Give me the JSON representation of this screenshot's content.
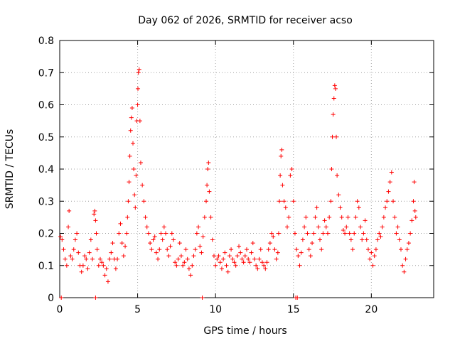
{
  "chart_data": {
    "type": "scatter",
    "title": "Day 062 of 2026, SRMTID for receiver acso",
    "xlabel": "GPS time / hours",
    "ylabel": "SRMTID / TECUs",
    "xlim": [
      0,
      24
    ],
    "ylim": [
      0,
      0.8
    ],
    "x_ticks": [
      0,
      5,
      10,
      15,
      20
    ],
    "x_tick_labels": [
      "0",
      "5",
      "10",
      "15",
      "20"
    ],
    "y_ticks": [
      0,
      0.1,
      0.2,
      0.3,
      0.4,
      0.5,
      0.6,
      0.7,
      0.8
    ],
    "y_tick_labels": [
      "0",
      "0.1",
      "0.2",
      "0.3",
      "0.4",
      "0.5",
      "0.6",
      "0.7",
      "0.8"
    ],
    "grid": true,
    "marker": "+",
    "color": "#ff0000",
    "series": [
      {
        "name": "SRMTID",
        "points": [
          [
            0.05,
            0.19
          ],
          [
            0.15,
            0.18
          ],
          [
            0.25,
            0.15
          ],
          [
            0.35,
            0.12
          ],
          [
            0.45,
            0.1
          ],
          [
            0.55,
            0.22
          ],
          [
            0.6,
            0.27
          ],
          [
            0.7,
            0.13
          ],
          [
            0.8,
            0.12
          ],
          [
            0.9,
            0.15
          ],
          [
            1.0,
            0.18
          ],
          [
            1.1,
            0.2
          ],
          [
            1.2,
            0.14
          ],
          [
            1.3,
            0.1
          ],
          [
            1.4,
            0.08
          ],
          [
            1.5,
            0.1
          ],
          [
            1.6,
            0.13
          ],
          [
            1.7,
            0.12
          ],
          [
            1.8,
            0.09
          ],
          [
            1.9,
            0.14
          ],
          [
            2.0,
            0.18
          ],
          [
            2.1,
            0.12
          ],
          [
            2.2,
            0.26
          ],
          [
            2.25,
            0.27
          ],
          [
            2.3,
            0.24
          ],
          [
            2.35,
            0.2
          ],
          [
            2.4,
            0.15
          ],
          [
            2.5,
            0.1
          ],
          [
            2.6,
            0.12
          ],
          [
            2.7,
            0.11
          ],
          [
            2.8,
            0.1
          ],
          [
            2.9,
            0.07
          ],
          [
            3.0,
            0.09
          ],
          [
            3.1,
            0.05
          ],
          [
            3.2,
            0.12
          ],
          [
            3.3,
            0.14
          ],
          [
            3.4,
            0.17
          ],
          [
            3.5,
            0.12
          ],
          [
            3.6,
            0.09
          ],
          [
            3.7,
            0.12
          ],
          [
            3.8,
            0.2
          ],
          [
            3.9,
            0.23
          ],
          [
            4.0,
            0.17
          ],
          [
            4.1,
            0.13
          ],
          [
            4.2,
            0.16
          ],
          [
            4.3,
            0.2
          ],
          [
            4.35,
            0.25
          ],
          [
            4.4,
            0.3
          ],
          [
            4.45,
            0.36
          ],
          [
            4.5,
            0.44
          ],
          [
            4.55,
            0.52
          ],
          [
            4.6,
            0.56
          ],
          [
            4.65,
            0.59
          ],
          [
            4.7,
            0.48
          ],
          [
            4.75,
            0.4
          ],
          [
            4.8,
            0.32
          ],
          [
            4.85,
            0.28
          ],
          [
            4.9,
            0.38
          ],
          [
            4.95,
            0.55
          ],
          [
            5.0,
            0.6
          ],
          [
            5.02,
            0.65
          ],
          [
            5.05,
            0.7
          ],
          [
            5.1,
            0.71
          ],
          [
            5.15,
            0.55
          ],
          [
            5.2,
            0.42
          ],
          [
            5.3,
            0.35
          ],
          [
            5.4,
            0.3
          ],
          [
            5.5,
            0.25
          ],
          [
            5.6,
            0.22
          ],
          [
            5.7,
            0.2
          ],
          [
            5.8,
            0.17
          ],
          [
            5.9,
            0.15
          ],
          [
            6.0,
            0.18
          ],
          [
            6.1,
            0.19
          ],
          [
            6.2,
            0.14
          ],
          [
            6.3,
            0.12
          ],
          [
            6.4,
            0.15
          ],
          [
            6.5,
            0.2
          ],
          [
            6.6,
            0.18
          ],
          [
            6.7,
            0.22
          ],
          [
            6.8,
            0.2
          ],
          [
            6.9,
            0.15
          ],
          [
            7.0,
            0.13
          ],
          [
            7.1,
            0.16
          ],
          [
            7.2,
            0.2
          ],
          [
            7.3,
            0.18
          ],
          [
            7.4,
            0.11
          ],
          [
            7.5,
            0.1
          ],
          [
            7.6,
            0.12
          ],
          [
            7.7,
            0.17
          ],
          [
            7.8,
            0.13
          ],
          [
            7.9,
            0.1
          ],
          [
            8.0,
            0.11
          ],
          [
            8.1,
            0.15
          ],
          [
            8.2,
            0.12
          ],
          [
            8.3,
            0.09
          ],
          [
            8.4,
            0.07
          ],
          [
            8.5,
            0.1
          ],
          [
            8.6,
            0.13
          ],
          [
            8.7,
            0.15
          ],
          [
            8.8,
            0.2
          ],
          [
            8.9,
            0.22
          ],
          [
            9.0,
            0.16
          ],
          [
            9.1,
            0.14
          ],
          [
            9.2,
            0.19
          ],
          [
            9.3,
            0.25
          ],
          [
            9.4,
            0.3
          ],
          [
            9.45,
            0.35
          ],
          [
            9.5,
            0.4
          ],
          [
            9.55,
            0.42
          ],
          [
            9.6,
            0.33
          ],
          [
            9.7,
            0.25
          ],
          [
            9.8,
            0.18
          ],
          [
            9.9,
            0.13
          ],
          [
            10.0,
            0.1
          ],
          [
            10.1,
            0.12
          ],
          [
            10.2,
            0.13
          ],
          [
            10.3,
            0.11
          ],
          [
            10.4,
            0.09
          ],
          [
            10.5,
            0.12
          ],
          [
            10.6,
            0.14
          ],
          [
            10.7,
            0.1
          ],
          [
            10.8,
            0.08
          ],
          [
            10.9,
            0.13
          ],
          [
            11.0,
            0.15
          ],
          [
            11.1,
            0.12
          ],
          [
            11.2,
            0.11
          ],
          [
            11.3,
            0.1
          ],
          [
            11.4,
            0.13
          ],
          [
            11.5,
            0.16
          ],
          [
            11.6,
            0.14
          ],
          [
            11.7,
            0.12
          ],
          [
            11.8,
            0.11
          ],
          [
            11.9,
            0.13
          ],
          [
            12.0,
            0.15
          ],
          [
            12.1,
            0.12
          ],
          [
            12.2,
            0.11
          ],
          [
            12.3,
            0.14
          ],
          [
            12.4,
            0.17
          ],
          [
            12.5,
            0.12
          ],
          [
            12.6,
            0.1
          ],
          [
            12.7,
            0.09
          ],
          [
            12.8,
            0.12
          ],
          [
            12.9,
            0.15
          ],
          [
            13.0,
            0.11
          ],
          [
            13.1,
            0.1
          ],
          [
            13.2,
            0.09
          ],
          [
            13.3,
            0.11
          ],
          [
            13.4,
            0.15
          ],
          [
            13.5,
            0.17
          ],
          [
            13.6,
            0.2
          ],
          [
            13.7,
            0.19
          ],
          [
            13.8,
            0.15
          ],
          [
            13.9,
            0.12
          ],
          [
            14.0,
            0.14
          ],
          [
            14.05,
            0.2
          ],
          [
            14.1,
            0.3
          ],
          [
            14.15,
            0.38
          ],
          [
            14.2,
            0.44
          ],
          [
            14.25,
            0.46
          ],
          [
            14.3,
            0.35
          ],
          [
            14.4,
            0.3
          ],
          [
            14.5,
            0.28
          ],
          [
            14.6,
            0.22
          ],
          [
            14.7,
            0.25
          ],
          [
            14.8,
            0.38
          ],
          [
            14.9,
            0.4
          ],
          [
            15.0,
            0.3
          ],
          [
            15.1,
            0.2
          ],
          [
            15.2,
            0.15
          ],
          [
            15.3,
            0.13
          ],
          [
            15.4,
            0.1
          ],
          [
            15.5,
            0.14
          ],
          [
            15.6,
            0.18
          ],
          [
            15.7,
            0.22
          ],
          [
            15.8,
            0.25
          ],
          [
            15.9,
            0.2
          ],
          [
            16.0,
            0.15
          ],
          [
            16.1,
            0.13
          ],
          [
            16.2,
            0.17
          ],
          [
            16.3,
            0.2
          ],
          [
            16.4,
            0.25
          ],
          [
            16.5,
            0.28
          ],
          [
            16.6,
            0.22
          ],
          [
            16.7,
            0.18
          ],
          [
            16.8,
            0.15
          ],
          [
            16.9,
            0.2
          ],
          [
            17.0,
            0.24
          ],
          [
            17.1,
            0.22
          ],
          [
            17.2,
            0.2
          ],
          [
            17.3,
            0.25
          ],
          [
            17.4,
            0.3
          ],
          [
            17.45,
            0.4
          ],
          [
            17.5,
            0.5
          ],
          [
            17.55,
            0.57
          ],
          [
            17.6,
            0.62
          ],
          [
            17.65,
            0.66
          ],
          [
            17.7,
            0.65
          ],
          [
            17.75,
            0.5
          ],
          [
            17.8,
            0.38
          ],
          [
            17.9,
            0.32
          ],
          [
            18.0,
            0.28
          ],
          [
            18.1,
            0.25
          ],
          [
            18.2,
            0.21
          ],
          [
            18.3,
            0.2
          ],
          [
            18.4,
            0.22
          ],
          [
            18.5,
            0.25
          ],
          [
            18.6,
            0.2
          ],
          [
            18.7,
            0.18
          ],
          [
            18.8,
            0.15
          ],
          [
            18.9,
            0.2
          ],
          [
            19.0,
            0.25
          ],
          [
            19.1,
            0.3
          ],
          [
            19.2,
            0.28
          ],
          [
            19.3,
            0.22
          ],
          [
            19.4,
            0.18
          ],
          [
            19.5,
            0.2
          ],
          [
            19.6,
            0.24
          ],
          [
            19.7,
            0.18
          ],
          [
            19.8,
            0.15
          ],
          [
            19.9,
            0.12
          ],
          [
            20.0,
            0.14
          ],
          [
            20.1,
            0.1
          ],
          [
            20.2,
            0.13
          ],
          [
            20.3,
            0.15
          ],
          [
            20.4,
            0.18
          ],
          [
            20.5,
            0.2
          ],
          [
            20.6,
            0.19
          ],
          [
            20.7,
            0.22
          ],
          [
            20.8,
            0.25
          ],
          [
            20.9,
            0.28
          ],
          [
            21.0,
            0.3
          ],
          [
            21.1,
            0.33
          ],
          [
            21.2,
            0.36
          ],
          [
            21.3,
            0.39
          ],
          [
            21.4,
            0.3
          ],
          [
            21.5,
            0.25
          ],
          [
            21.6,
            0.2
          ],
          [
            21.7,
            0.22
          ],
          [
            21.8,
            0.18
          ],
          [
            21.9,
            0.15
          ],
          [
            22.0,
            0.1
          ],
          [
            22.1,
            0.08
          ],
          [
            22.2,
            0.12
          ],
          [
            22.3,
            0.15
          ],
          [
            22.4,
            0.17
          ],
          [
            22.5,
            0.2
          ],
          [
            22.6,
            0.24
          ],
          [
            22.7,
            0.3
          ],
          [
            22.75,
            0.36
          ],
          [
            22.8,
            0.27
          ],
          [
            22.85,
            0.25
          ],
          [
            0.1,
            0.0
          ],
          [
            2.3,
            0.0
          ],
          [
            9.15,
            0.0
          ],
          [
            15.15,
            0.0
          ],
          [
            15.25,
            0.0
          ]
        ]
      }
    ]
  }
}
